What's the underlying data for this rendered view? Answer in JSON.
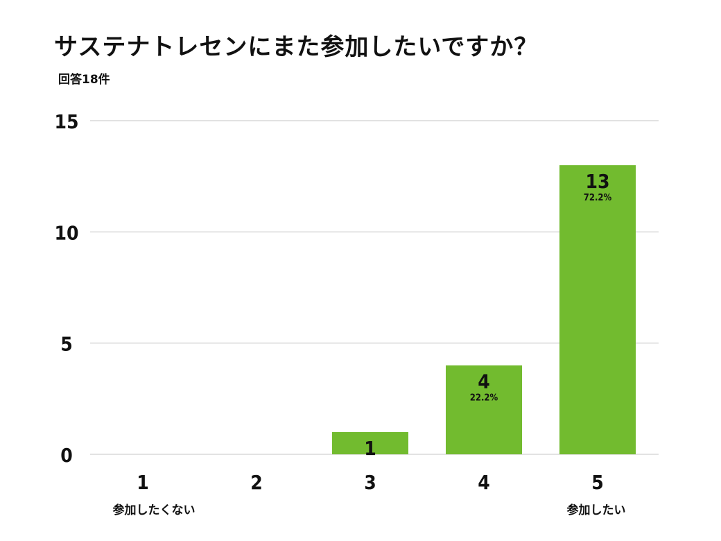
{
  "chart_data": {
    "type": "bar",
    "title": "サステナトレセンにまた参加したいですか？",
    "subtitle": "回答18件",
    "categories": [
      "1",
      "2",
      "3",
      "4",
      "5"
    ],
    "values": [
      0,
      0,
      1,
      4,
      13
    ],
    "value_labels": [
      "",
      "",
      "1",
      "4",
      "13"
    ],
    "percent_labels": [
      "",
      "",
      "",
      "22.2%",
      "72.2%"
    ],
    "category_annotations": [
      "参加したくない",
      "",
      "",
      "",
      "参加したい"
    ],
    "yticks": [
      0,
      5,
      10,
      15
    ],
    "ylim": [
      0,
      15
    ],
    "grid": true,
    "colors": {
      "bar": "#72bb2f",
      "grid": "#d9d9d9",
      "text": "#111111"
    }
  }
}
